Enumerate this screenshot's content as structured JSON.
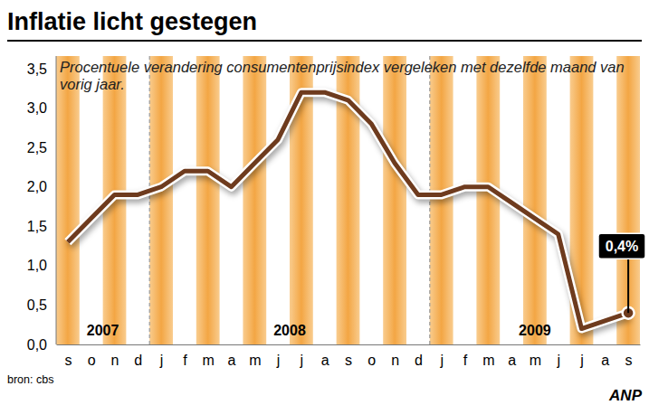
{
  "chart_data": {
    "type": "line",
    "title": "Inflatie licht gestegen",
    "subtitle": "Procentuele verandering consumentenprijsindex vergeleken met dezelfde maand van vorig jaar.",
    "categories": [
      "s",
      "o",
      "n",
      "d",
      "j",
      "f",
      "m",
      "a",
      "m",
      "j",
      "j",
      "a",
      "s",
      "o",
      "n",
      "d",
      "j",
      "f",
      "m",
      "a",
      "m",
      "j",
      "j",
      "a",
      "s"
    ],
    "values": [
      1.3,
      1.6,
      1.9,
      1.9,
      2.0,
      2.2,
      2.2,
      2.0,
      2.3,
      2.6,
      3.2,
      3.2,
      3.1,
      2.8,
      2.3,
      1.9,
      1.9,
      2.0,
      2.0,
      1.8,
      1.6,
      1.4,
      0.2,
      0.3,
      0.4
    ],
    "value_labels": [
      null,
      null,
      null,
      null,
      null,
      null,
      null,
      null,
      null,
      null,
      null,
      null,
      null,
      null,
      null,
      null,
      null,
      null,
      null,
      null,
      null,
      null,
      null,
      null,
      "0,4%"
    ],
    "year_groups": [
      {
        "label": "2007",
        "count": 4
      },
      {
        "label": "2008",
        "count": 12
      },
      {
        "label": "2009",
        "count": 9
      }
    ],
    "color": "#6e3b1e",
    "ylim": [
      0,
      3.5
    ],
    "yticks": [
      {
        "value": 0,
        "label": "0,0"
      },
      {
        "value": 0.5,
        "label": "0,5"
      },
      {
        "value": 1,
        "label": "1,0"
      },
      {
        "value": 1.5,
        "label": "1,5"
      },
      {
        "value": 2,
        "label": "2,0"
      },
      {
        "value": 2.5,
        "label": "2,5"
      },
      {
        "value": 3,
        "label": "3,0"
      },
      {
        "value": 3.5,
        "label": "3,5"
      }
    ],
    "grid": false,
    "source": "bron: cbs",
    "credit": "ANP"
  }
}
